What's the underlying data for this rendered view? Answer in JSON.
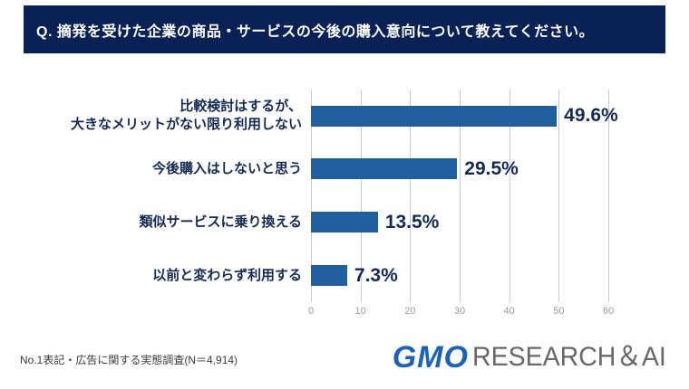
{
  "header": {
    "question": "Q. 摘発を受けた企業の商品・サービスの今後の購入意向について教えてください。",
    "bg_color": "#0a2156",
    "text_color": "#ffffff"
  },
  "chart_data": {
    "type": "bar",
    "orientation": "horizontal",
    "categories": [
      "比較検討はするが、\n大きなメリットがない限り利用しない",
      "今後購入はしないと思う",
      "類似サービスに乗り換える",
      "以前と変わらず利用する"
    ],
    "values": [
      49.6,
      29.5,
      13.5,
      7.3
    ],
    "value_labels": [
      "49.6%",
      "29.5%",
      "13.5%",
      "7.3%"
    ],
    "x_ticks": [
      "0",
      "10",
      "20",
      "30",
      "40",
      "50",
      "60"
    ],
    "xlim": [
      0,
      60
    ],
    "bar_color": "#215f9e",
    "label_color": "#152a52",
    "grid": true,
    "grid_color": "#cbcbcb",
    "legend": "none",
    "title": "",
    "xlabel": "",
    "ylabel": ""
  },
  "footer": {
    "source": "No.1表記・広告に関する実態調査(N＝4,914)"
  },
  "logo": {
    "gmo": "GMO",
    "research": "RESEARCH＆AI",
    "gmo_color": "#1c63b7",
    "research_color": "#68686c"
  }
}
